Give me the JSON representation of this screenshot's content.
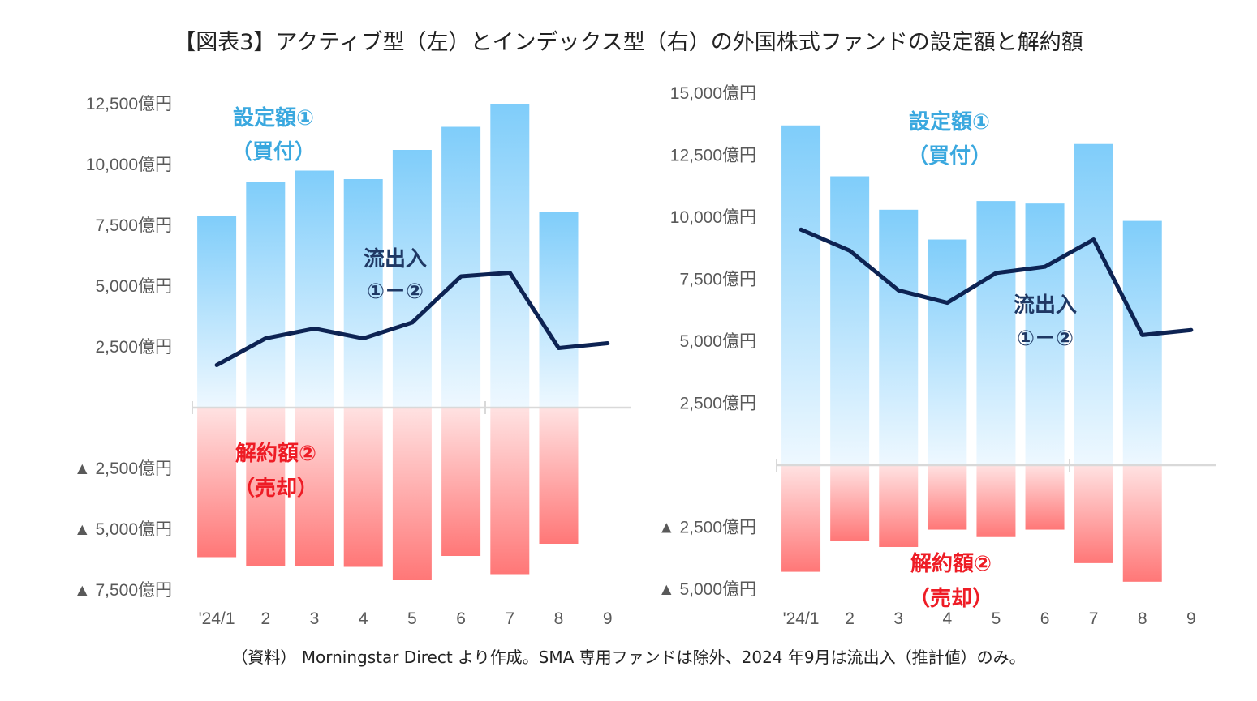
{
  "title": "【図表3】アクティブ型（左）とインデックス型（右）の外国株式ファンドの設定額と解約額",
  "source": "（資料） Morningstar Direct より作成。SMA 専用ファンドは除外、2024 年9月は流出入（推計値）のみ。",
  "colors": {
    "buy_top": "#7fcdfa",
    "buy_bottom": "#eef8ff",
    "sell_top": "#ffe2e2",
    "sell_bottom": "#ff7777",
    "line": "#0d2353",
    "axis": "#d9d9d9",
    "blue_text": "#3aa8df",
    "navy_text": "#1f3864",
    "red_text": "#ee1c25"
  },
  "chart_data": [
    {
      "type": "bar",
      "name": "アクティブ型",
      "unit": "億円",
      "categories": [
        "'24/1",
        "2",
        "3",
        "4",
        "5",
        "6",
        "7",
        "8",
        "9"
      ],
      "series": [
        {
          "name": "設定額①（買付）",
          "values": [
            7900,
            9300,
            9750,
            9400,
            10600,
            11550,
            12500,
            8050,
            null
          ]
        },
        {
          "name": "解約額②（売却）",
          "values": [
            -6150,
            -6500,
            -6500,
            -6550,
            -7100,
            -6100,
            -6850,
            -5600,
            null
          ]
        },
        {
          "name": "流出入①－②",
          "values": [
            1750,
            2850,
            3250,
            2850,
            3500,
            5400,
            5550,
            2450,
            2650
          ]
        }
      ],
      "ylim": [
        -8000,
        13000
      ],
      "yticks": [
        {
          "value": 12500,
          "label": "12,500億円"
        },
        {
          "value": 10000,
          "label": "10,000億円"
        },
        {
          "value": 7500,
          "label": "7,500億円"
        },
        {
          "value": 5000,
          "label": "5,000億円"
        },
        {
          "value": 2500,
          "label": "2,500億円"
        },
        {
          "value": -2500,
          "label": "▲ 2,500億円"
        },
        {
          "value": -5000,
          "label": "▲ 5,000億円"
        },
        {
          "value": -7500,
          "label": "▲ 7,500億円"
        }
      ],
      "annotations": {
        "buy": [
          "設定額①",
          "（買付）"
        ],
        "net": [
          "流出入",
          "①－②"
        ],
        "sell": [
          "解約額②",
          "（売却）"
        ]
      }
    },
    {
      "type": "bar",
      "name": "インデックス型",
      "unit": "億円",
      "categories": [
        "'24/1",
        "2",
        "3",
        "4",
        "5",
        "6",
        "7",
        "8",
        "9"
      ],
      "series": [
        {
          "name": "設定額①（買付）",
          "values": [
            13700,
            11650,
            10300,
            9100,
            10650,
            10550,
            12950,
            9850,
            null
          ]
        },
        {
          "name": "解約額②（売却）",
          "values": [
            -4300,
            -3050,
            -3300,
            -2600,
            -2900,
            -2600,
            -3950,
            -4700,
            null
          ]
        },
        {
          "name": "流出入①－②",
          "values": [
            9500,
            8650,
            7050,
            6550,
            7750,
            8000,
            9100,
            5250,
            5450
          ]
        }
      ],
      "ylim": [
        -5500,
        15500
      ],
      "yticks": [
        {
          "value": 15000,
          "label": "15,000億円"
        },
        {
          "value": 12500,
          "label": "12,500億円"
        },
        {
          "value": 10000,
          "label": "10,000億円"
        },
        {
          "value": 7500,
          "label": "7,500億円"
        },
        {
          "value": 5000,
          "label": "5,000億円"
        },
        {
          "value": 2500,
          "label": "2,500億円"
        },
        {
          "value": -2500,
          "label": "▲ 2,500億円"
        },
        {
          "value": -5000,
          "label": "▲ 5,000億円"
        }
      ],
      "annotations": {
        "buy": [
          "設定額①",
          "（買付）"
        ],
        "net": [
          "流出入",
          "①－②"
        ],
        "sell": [
          "解約額②",
          "（売却）"
        ]
      }
    }
  ]
}
